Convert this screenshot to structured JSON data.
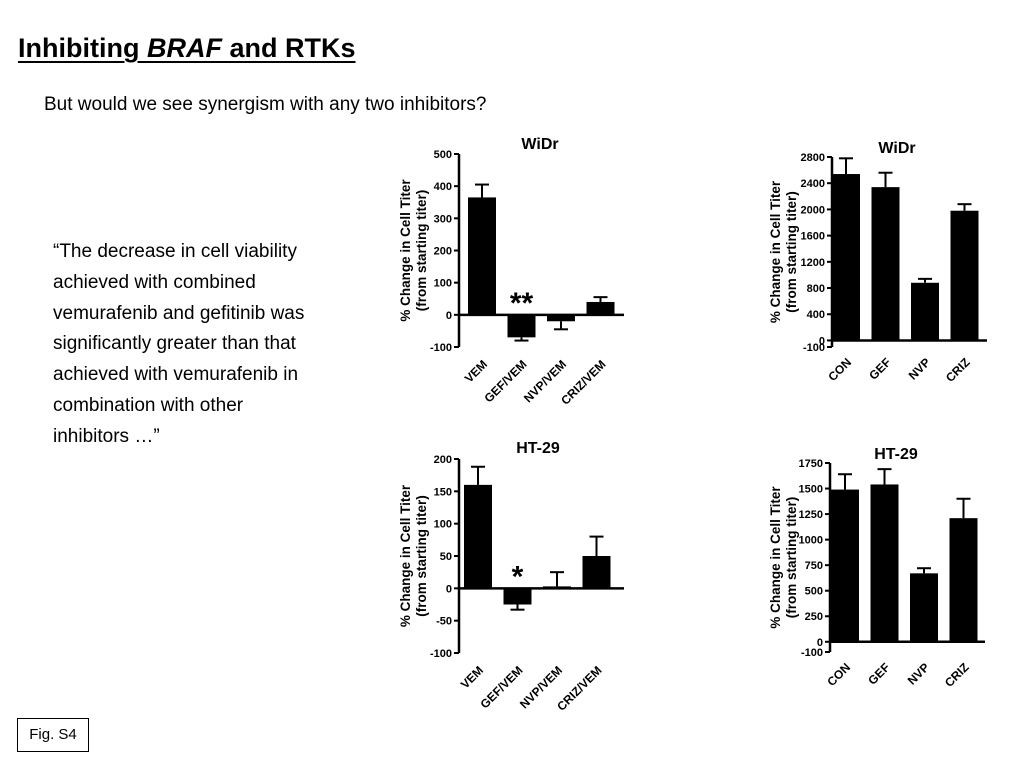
{
  "slide": {
    "title_prefix": "Inhibiting ",
    "title_italic": "BRAF",
    "title_suffix": " and RTKs",
    "subtitle": "But would we see synergism with any two inhibitors?",
    "quote": "“The decrease in cell viability achieved with combined vemurafenib and gefitinib was significantly greater than that achieved with vemurafenib in combination with other inhibitors …”",
    "figure_label": "Fig. S4"
  },
  "chart_data": [
    {
      "id": "wiDr-combo",
      "type": "bar",
      "title": "WiDr",
      "ylabel": [
        "% Change in Cell Titer",
        "(from starting titer)"
      ],
      "xlabel": "",
      "categories": [
        "VEM",
        "GEF/VEM",
        "NVP/VEM",
        "CRIZ/VEM"
      ],
      "values": [
        365,
        -70,
        -20,
        40
      ],
      "errors": [
        40,
        10,
        25,
        15
      ],
      "ylim": [
        -100,
        500
      ],
      "yticks": [
        "-100",
        "0",
        "100",
        "200",
        "300",
        "400",
        "500"
      ],
      "annotations": [
        {
          "category": "GEF/VEM",
          "text": "**"
        }
      ]
    },
    {
      "id": "wiDr-single",
      "type": "bar",
      "title": "WiDr",
      "ylabel": [
        "% Change in Cell Titer",
        "(from starting titer)"
      ],
      "xlabel": "",
      "categories": [
        "CON",
        "GEF",
        "NVP",
        "CRIZ"
      ],
      "values": [
        2540,
        2340,
        880,
        1980
      ],
      "errors": [
        240,
        220,
        60,
        100
      ],
      "ylim": [
        -100,
        2800
      ],
      "yticks": [
        "-100",
        "0",
        "400",
        "800",
        "1200",
        "1600",
        "2000",
        "2400",
        "2800"
      ],
      "annotations": []
    },
    {
      "id": "ht29-combo",
      "type": "bar",
      "title": "HT-29",
      "ylabel": [
        "% Change in Cell Titer",
        "(from starting titer)"
      ],
      "xlabel": "",
      "categories": [
        "VEM",
        "GEF/VEM",
        "NVP/VEM",
        "CRIZ/VEM"
      ],
      "values": [
        160,
        -25,
        3,
        50
      ],
      "errors": [
        28,
        8,
        22,
        30
      ],
      "ylim": [
        -100,
        200
      ],
      "yticks": [
        "-100",
        "-50",
        "0",
        "50",
        "100",
        "150",
        "200"
      ],
      "annotations": [
        {
          "category": "GEF/VEM",
          "text": "*"
        }
      ]
    },
    {
      "id": "ht29-single",
      "type": "bar",
      "title": "HT-29",
      "ylabel": [
        "% Change in Cell Titer",
        "(from starting titer)"
      ],
      "xlabel": "",
      "categories": [
        "CON",
        "GEF",
        "NVP",
        "CRIZ"
      ],
      "values": [
        1490,
        1540,
        670,
        1210
      ],
      "errors": [
        150,
        150,
        50,
        190
      ],
      "ylim": [
        -100,
        1750
      ],
      "yticks": [
        "-100",
        "0",
        "250",
        "500",
        "750",
        "1000",
        "1250",
        "1500",
        "1750"
      ],
      "annotations": []
    }
  ]
}
